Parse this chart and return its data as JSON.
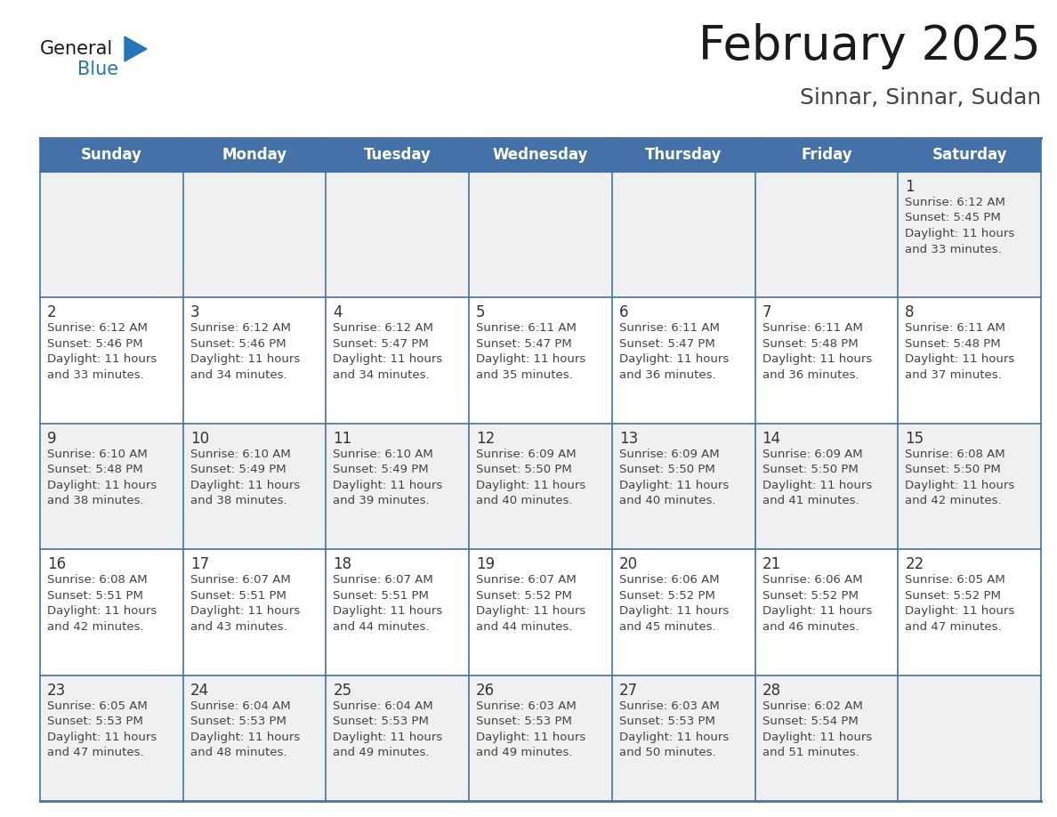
{
  "title": "February 2025",
  "subtitle": "Sinnar, Sinnar, Sudan",
  "header_bg_color": "#4472A8",
  "header_text_color": "#FFFFFF",
  "cell_bg_white": "#FFFFFF",
  "cell_bg_gray": "#F0F0F0",
  "day_number_color": "#333333",
  "info_text_color": "#444444",
  "border_color": "#4472A8",
  "grid_line_color": "#4472A8",
  "days_of_week": [
    "Sunday",
    "Monday",
    "Tuesday",
    "Wednesday",
    "Thursday",
    "Friday",
    "Saturday"
  ],
  "title_color": "#1A1A1A",
  "subtitle_color": "#444444",
  "logo_general_color": "#1A1A1A",
  "logo_blue_color": "#2676BE",
  "calendar_data": [
    {
      "day": 1,
      "col": 6,
      "row": 0,
      "sunrise": "6:12 AM",
      "sunset": "5:45 PM",
      "daylight_hours": 11,
      "daylight_minutes": 33
    },
    {
      "day": 2,
      "col": 0,
      "row": 1,
      "sunrise": "6:12 AM",
      "sunset": "5:46 PM",
      "daylight_hours": 11,
      "daylight_minutes": 33
    },
    {
      "day": 3,
      "col": 1,
      "row": 1,
      "sunrise": "6:12 AM",
      "sunset": "5:46 PM",
      "daylight_hours": 11,
      "daylight_minutes": 34
    },
    {
      "day": 4,
      "col": 2,
      "row": 1,
      "sunrise": "6:12 AM",
      "sunset": "5:47 PM",
      "daylight_hours": 11,
      "daylight_minutes": 34
    },
    {
      "day": 5,
      "col": 3,
      "row": 1,
      "sunrise": "6:11 AM",
      "sunset": "5:47 PM",
      "daylight_hours": 11,
      "daylight_minutes": 35
    },
    {
      "day": 6,
      "col": 4,
      "row": 1,
      "sunrise": "6:11 AM",
      "sunset": "5:47 PM",
      "daylight_hours": 11,
      "daylight_minutes": 36
    },
    {
      "day": 7,
      "col": 5,
      "row": 1,
      "sunrise": "6:11 AM",
      "sunset": "5:48 PM",
      "daylight_hours": 11,
      "daylight_minutes": 36
    },
    {
      "day": 8,
      "col": 6,
      "row": 1,
      "sunrise": "6:11 AM",
      "sunset": "5:48 PM",
      "daylight_hours": 11,
      "daylight_minutes": 37
    },
    {
      "day": 9,
      "col": 0,
      "row": 2,
      "sunrise": "6:10 AM",
      "sunset": "5:48 PM",
      "daylight_hours": 11,
      "daylight_minutes": 38
    },
    {
      "day": 10,
      "col": 1,
      "row": 2,
      "sunrise": "6:10 AM",
      "sunset": "5:49 PM",
      "daylight_hours": 11,
      "daylight_minutes": 38
    },
    {
      "day": 11,
      "col": 2,
      "row": 2,
      "sunrise": "6:10 AM",
      "sunset": "5:49 PM",
      "daylight_hours": 11,
      "daylight_minutes": 39
    },
    {
      "day": 12,
      "col": 3,
      "row": 2,
      "sunrise": "6:09 AM",
      "sunset": "5:50 PM",
      "daylight_hours": 11,
      "daylight_minutes": 40
    },
    {
      "day": 13,
      "col": 4,
      "row": 2,
      "sunrise": "6:09 AM",
      "sunset": "5:50 PM",
      "daylight_hours": 11,
      "daylight_minutes": 40
    },
    {
      "day": 14,
      "col": 5,
      "row": 2,
      "sunrise": "6:09 AM",
      "sunset": "5:50 PM",
      "daylight_hours": 11,
      "daylight_minutes": 41
    },
    {
      "day": 15,
      "col": 6,
      "row": 2,
      "sunrise": "6:08 AM",
      "sunset": "5:50 PM",
      "daylight_hours": 11,
      "daylight_minutes": 42
    },
    {
      "day": 16,
      "col": 0,
      "row": 3,
      "sunrise": "6:08 AM",
      "sunset": "5:51 PM",
      "daylight_hours": 11,
      "daylight_minutes": 42
    },
    {
      "day": 17,
      "col": 1,
      "row": 3,
      "sunrise": "6:07 AM",
      "sunset": "5:51 PM",
      "daylight_hours": 11,
      "daylight_minutes": 43
    },
    {
      "day": 18,
      "col": 2,
      "row": 3,
      "sunrise": "6:07 AM",
      "sunset": "5:51 PM",
      "daylight_hours": 11,
      "daylight_minutes": 44
    },
    {
      "day": 19,
      "col": 3,
      "row": 3,
      "sunrise": "6:07 AM",
      "sunset": "5:52 PM",
      "daylight_hours": 11,
      "daylight_minutes": 44
    },
    {
      "day": 20,
      "col": 4,
      "row": 3,
      "sunrise": "6:06 AM",
      "sunset": "5:52 PM",
      "daylight_hours": 11,
      "daylight_minutes": 45
    },
    {
      "day": 21,
      "col": 5,
      "row": 3,
      "sunrise": "6:06 AM",
      "sunset": "5:52 PM",
      "daylight_hours": 11,
      "daylight_minutes": 46
    },
    {
      "day": 22,
      "col": 6,
      "row": 3,
      "sunrise": "6:05 AM",
      "sunset": "5:52 PM",
      "daylight_hours": 11,
      "daylight_minutes": 47
    },
    {
      "day": 23,
      "col": 0,
      "row": 4,
      "sunrise": "6:05 AM",
      "sunset": "5:53 PM",
      "daylight_hours": 11,
      "daylight_minutes": 47
    },
    {
      "day": 24,
      "col": 1,
      "row": 4,
      "sunrise": "6:04 AM",
      "sunset": "5:53 PM",
      "daylight_hours": 11,
      "daylight_minutes": 48
    },
    {
      "day": 25,
      "col": 2,
      "row": 4,
      "sunrise": "6:04 AM",
      "sunset": "5:53 PM",
      "daylight_hours": 11,
      "daylight_minutes": 49
    },
    {
      "day": 26,
      "col": 3,
      "row": 4,
      "sunrise": "6:03 AM",
      "sunset": "5:53 PM",
      "daylight_hours": 11,
      "daylight_minutes": 49
    },
    {
      "day": 27,
      "col": 4,
      "row": 4,
      "sunrise": "6:03 AM",
      "sunset": "5:53 PM",
      "daylight_hours": 11,
      "daylight_minutes": 50
    },
    {
      "day": 28,
      "col": 5,
      "row": 4,
      "sunrise": "6:02 AM",
      "sunset": "5:54 PM",
      "daylight_hours": 11,
      "daylight_minutes": 51
    }
  ]
}
